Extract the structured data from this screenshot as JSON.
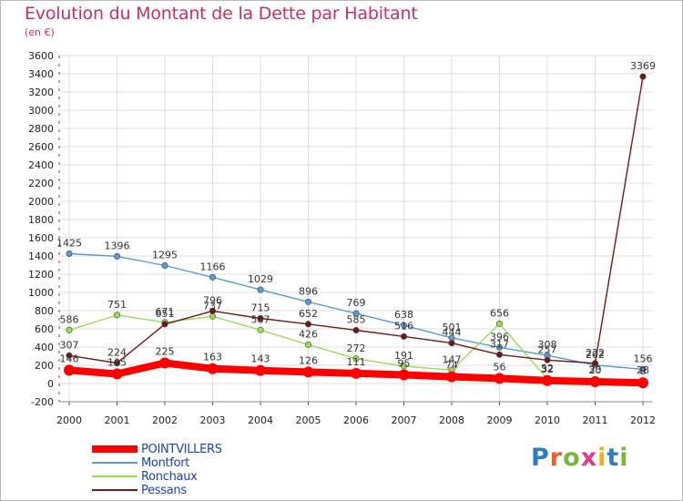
{
  "header": {
    "title": "Evolution du Montant de la Dette par Habitant",
    "unit": "(en €)"
  },
  "logo": {
    "text": "Proxiti",
    "colors": [
      "#2c7ec4",
      "#e8632a",
      "#7ab63a",
      "#e23a8a",
      "#f0b21c",
      "#2c7ec4",
      "#7ab63a"
    ]
  },
  "chart_data": {
    "type": "line",
    "title": "Evolution du Montant de la Dette par Habitant",
    "subtitle": "(en €)",
    "xlabel": "",
    "ylabel": "",
    "categories": [
      "2000",
      "2001",
      "2002",
      "2003",
      "2004",
      "2005",
      "2006",
      "2007",
      "2008",
      "2009",
      "2010",
      "2011",
      "2012"
    ],
    "ylim": [
      -200,
      3600
    ],
    "yticks": [
      -200,
      0,
      200,
      400,
      600,
      800,
      1000,
      1200,
      1400,
      1600,
      1800,
      2000,
      2200,
      2400,
      2600,
      2800,
      3000,
      3200,
      3400,
      3600
    ],
    "grid": true,
    "legend_position": "bottom-left",
    "series": [
      {
        "name": "POINTVILLERS",
        "color": "#ff0000",
        "values": [
          146,
          105,
          225,
          163,
          143,
          126,
          111,
          95,
          74,
          56,
          32,
          20,
          8
        ]
      },
      {
        "name": "Montfort",
        "color": "#5b9bd5",
        "values": [
          1425,
          1396,
          1295,
          1166,
          1029,
          896,
          769,
          638,
          501,
          396,
          308,
          202,
          156
        ]
      },
      {
        "name": "Ronchaux",
        "color": "#99dd55",
        "values": [
          586,
          751,
          671,
          737,
          587,
          426,
          272,
          191,
          147,
          656,
          52,
          33,
          28
        ]
      },
      {
        "name": "Pessans",
        "color": "#6e1a1a",
        "values": [
          307,
          224,
          651,
          796,
          715,
          652,
          585,
          516,
          444,
          317,
          257,
          222,
          3369
        ]
      }
    ]
  }
}
